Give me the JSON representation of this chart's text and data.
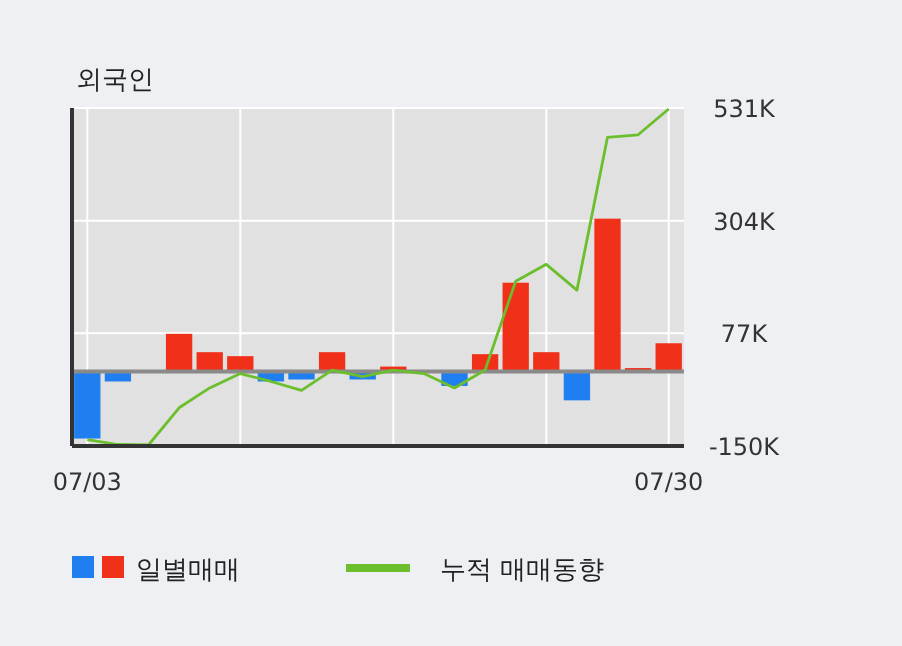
{
  "chart_data": {
    "type": "bar",
    "title": "외국인",
    "categories": [
      "07/03",
      null,
      null,
      null,
      null,
      null,
      null,
      null,
      null,
      null,
      null,
      null,
      null,
      null,
      null,
      null,
      null,
      null,
      null,
      "07/30"
    ],
    "series": [
      {
        "name": "일별매매",
        "colors": [
          "#1f7ff0",
          "#1f7ff0",
          "#f03018",
          "#f03018",
          "#f03018",
          "#f03018",
          "#1f7ff0",
          "#1f7ff0",
          "#f03018",
          "#1f7ff0",
          "#f03018",
          "#f03018",
          "#1f7ff0",
          "#f03018",
          "#f03018",
          "#f03018",
          "#1f7ff0",
          "#f03018",
          "#f03018",
          "#f03018"
        ],
        "values": [
          -135,
          -20,
          0,
          76,
          39,
          31,
          -20,
          -16,
          39,
          -16,
          10,
          0,
          -29,
          35,
          179,
          39,
          -58,
          308,
          7,
          57
        ]
      },
      {
        "name": "누적 매매동향",
        "type": "line",
        "color": "#6cbf2c",
        "values": [
          -137,
          -147,
          -148,
          -73,
          -33,
          -4,
          -20,
          -38,
          3,
          -10,
          3,
          -4,
          -33,
          3,
          182,
          216,
          164,
          472,
          477,
          529
        ]
      }
    ],
    "ylim": [
      -150,
      531
    ],
    "yticks": [
      {
        "value": -150,
        "label": "-150K"
      },
      {
        "value": 77,
        "label": "77K"
      },
      {
        "value": 304,
        "label": "304K"
      },
      {
        "value": 531,
        "label": "531K"
      }
    ],
    "ref_lines": [
      {
        "axis": "y",
        "value": 0,
        "color": "#8a8a8a"
      }
    ],
    "grid": true,
    "legend": "bottom"
  }
}
